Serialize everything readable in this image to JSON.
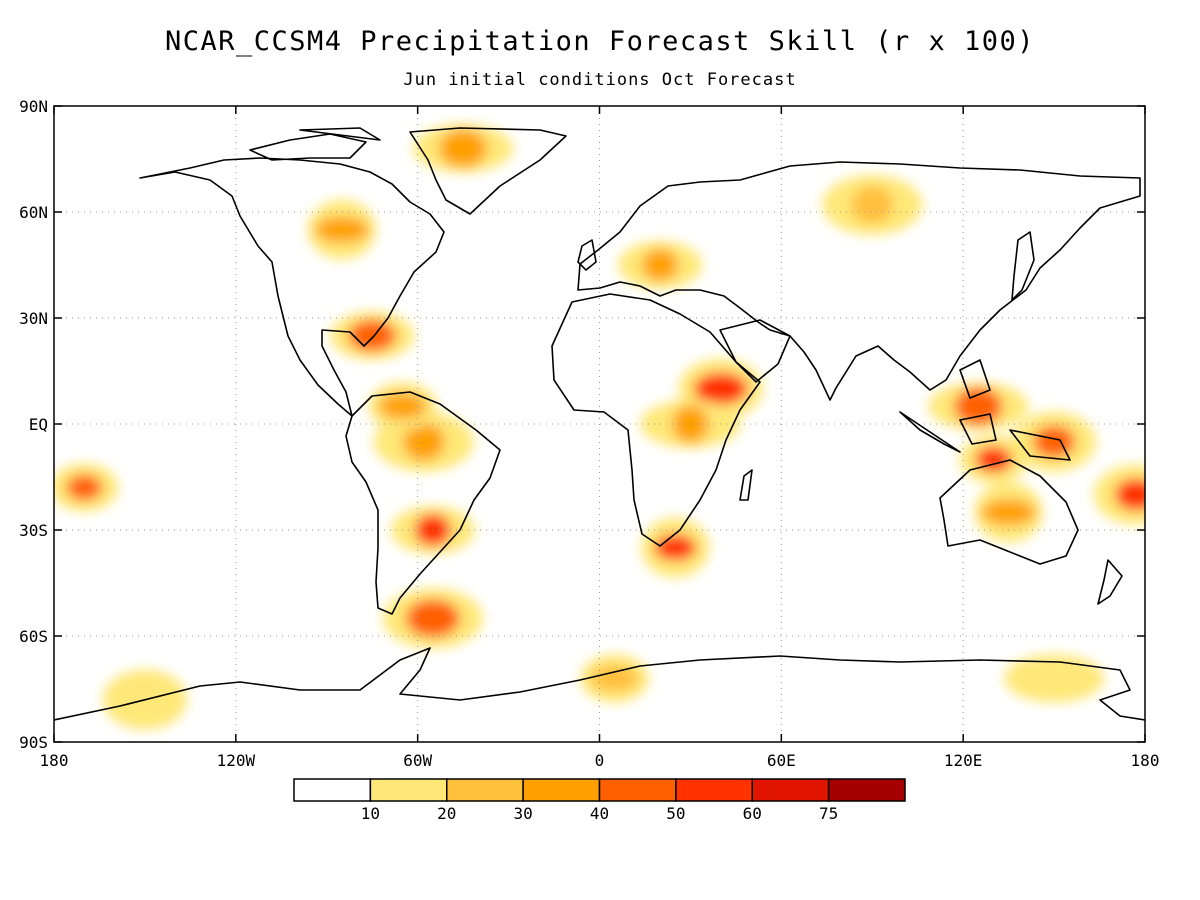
{
  "title": "NCAR_CCSM4 Precipitation Forecast Skill (r x 100)",
  "subtitle": "Jun initial conditions  Oct Forecast",
  "map": {
    "lat_labels": [
      "90N",
      "60N",
      "30N",
      "EQ",
      "30S",
      "60S",
      "90S"
    ],
    "lon_labels": [
      "180",
      "120W",
      "60W",
      "0",
      "60E",
      "120E",
      "180"
    ],
    "projection": "cylindrical equidistant",
    "grid": "dotted"
  },
  "colorbar": {
    "labels": [
      "10",
      "20",
      "30",
      "40",
      "50",
      "60",
      "75"
    ],
    "colors": [
      "#ffffff",
      "#ffe878",
      "#ffc03c",
      "#ffa000",
      "#ff6000",
      "#ff3200",
      "#e11400",
      "#a50000"
    ]
  },
  "chart_data": {
    "type": "heatmap",
    "title": "NCAR_CCSM4 Precipitation Forecast Skill (r x 100)",
    "subtitle": "Jun initial conditions  Oct Forecast",
    "xlim": [
      -180,
      180
    ],
    "ylim": [
      -90,
      90
    ],
    "levels": [
      10,
      20,
      30,
      40,
      50,
      60,
      75
    ],
    "regions": [
      {
        "lon": 130,
        "lat": -10,
        "value": 55
      },
      {
        "lon": 150,
        "lat": -5,
        "value": 45
      },
      {
        "lon": 125,
        "lat": 5,
        "value": 45
      },
      {
        "lon": 135,
        "lat": -25,
        "value": 35
      },
      {
        "lon": -55,
        "lat": -30,
        "value": 50
      },
      {
        "lon": -58,
        "lat": -5,
        "value": 35
      },
      {
        "lon": -65,
        "lat": 5,
        "value": 30
      },
      {
        "lon": 40,
        "lat": 10,
        "value": 50
      },
      {
        "lon": 30,
        "lat": 0,
        "value": 35
      },
      {
        "lon": 25,
        "lat": -35,
        "value": 50
      },
      {
        "lon": -75,
        "lat": 25,
        "value": 45
      },
      {
        "lon": -55,
        "lat": -55,
        "value": 45
      },
      {
        "lon": -170,
        "lat": -18,
        "value": 40
      },
      {
        "lon": 177,
        "lat": -20,
        "value": 50
      },
      {
        "lon": -45,
        "lat": 78,
        "value": 30
      },
      {
        "lon": -85,
        "lat": 55,
        "value": 30
      },
      {
        "lon": 20,
        "lat": 45,
        "value": 30
      },
      {
        "lon": 90,
        "lat": 62,
        "value": 25
      },
      {
        "lon": 5,
        "lat": -72,
        "value": 20
      },
      {
        "lon": -150,
        "lat": -78,
        "value": 15
      },
      {
        "lon": 150,
        "lat": -72,
        "value": 15
      }
    ]
  }
}
